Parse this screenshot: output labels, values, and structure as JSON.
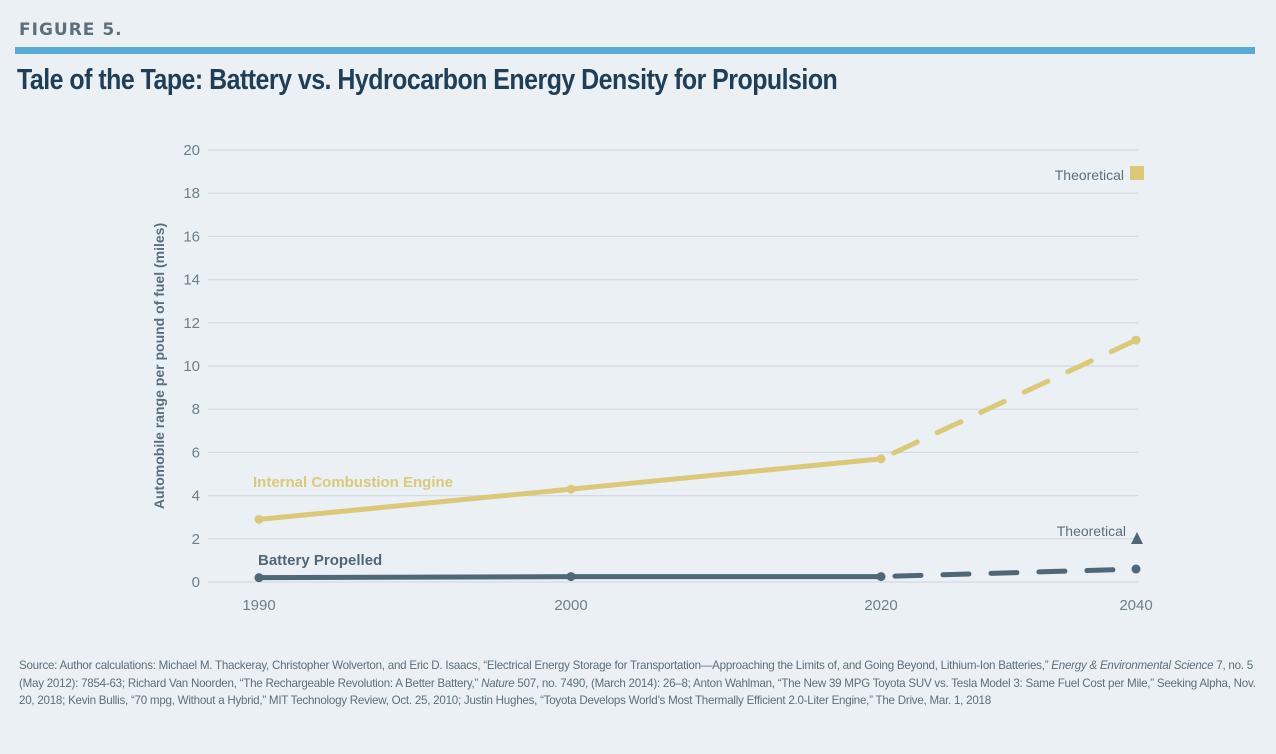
{
  "figure": {
    "label": "FIGURE 5.",
    "title": "Tale of the Tape: Battery vs. Hydrocarbon Energy Density for Propulsion",
    "accent_color": "#58acd4",
    "title_color": "#1f3e57"
  },
  "chart_data": {
    "type": "line",
    "title": "Tale of the Tape: Battery vs. Hydrocarbon Energy Density for Propulsion",
    "xlabel": "",
    "ylabel": "Automobile range per pound of fuel (miles)",
    "categories": [
      "1990",
      "2000",
      "2020",
      "2040"
    ],
    "ylim": [
      0,
      20
    ],
    "yticks": [
      0,
      2,
      4,
      6,
      8,
      10,
      12,
      14,
      16,
      18,
      20
    ],
    "grid": true,
    "series": [
      {
        "name": "Internal Combustion Engine",
        "color": "#d9c978",
        "values": [
          2.9,
          4.3,
          5.7,
          11.2
        ],
        "solid_until_index": 2,
        "projection_style": "dashed",
        "projection_label": "Theoretical",
        "projection_marker": "square"
      },
      {
        "name": "Battery Propelled",
        "color": "#4e6877",
        "values": [
          0.2,
          0.25,
          0.25,
          0.6
        ],
        "solid_until_index": 2,
        "projection_style": "dashed",
        "projection_label": "Theoretical",
        "projection_marker": "triangle"
      }
    ],
    "annotations": [
      {
        "text": "Theoretical",
        "marker": "square",
        "series": "Internal Combustion Engine",
        "placement": "top-right"
      },
      {
        "text": "Theoretical",
        "marker": "triangle",
        "series": "Battery Propelled",
        "placement": "bottom-right"
      }
    ]
  },
  "source": {
    "parts": [
      {
        "t": "Source: Author calculations: Michael M. Thackeray, Christopher Wolverton, and Eric D. Isaacs, “Electrical Energy Storage for Transportation—Approaching the Limits of, and Going Beyond, Lithium-Ion Batteries,” ",
        "i": false
      },
      {
        "t": "Energy & Environmental Science",
        "i": true
      },
      {
        "t": " 7, no. 5 (May 2012): 7854-63; Richard Van Noorden, “The Rechargeable Revolution: A Better Battery,” ",
        "i": false
      },
      {
        "t": "Nature",
        "i": true
      },
      {
        "t": " 507, no. 7490, (March 2014): 26–8; Anton Wahlman, “The New 39 MPG Toyota SUV vs. Tesla Model 3: Same Fuel Cost per Mile,” Seeking Alpha, Nov. 20, 2018; Kevin Bullis, “70 mpg, Without a Hybrid,” MIT Technology Review, Oct. 25, 2010; Justin Hughes, “Toyota Develops World’s Most Thermally Efficient 2.0-Liter Engine,” The Drive, Mar. 1, 2018",
        "i": false
      }
    ]
  }
}
